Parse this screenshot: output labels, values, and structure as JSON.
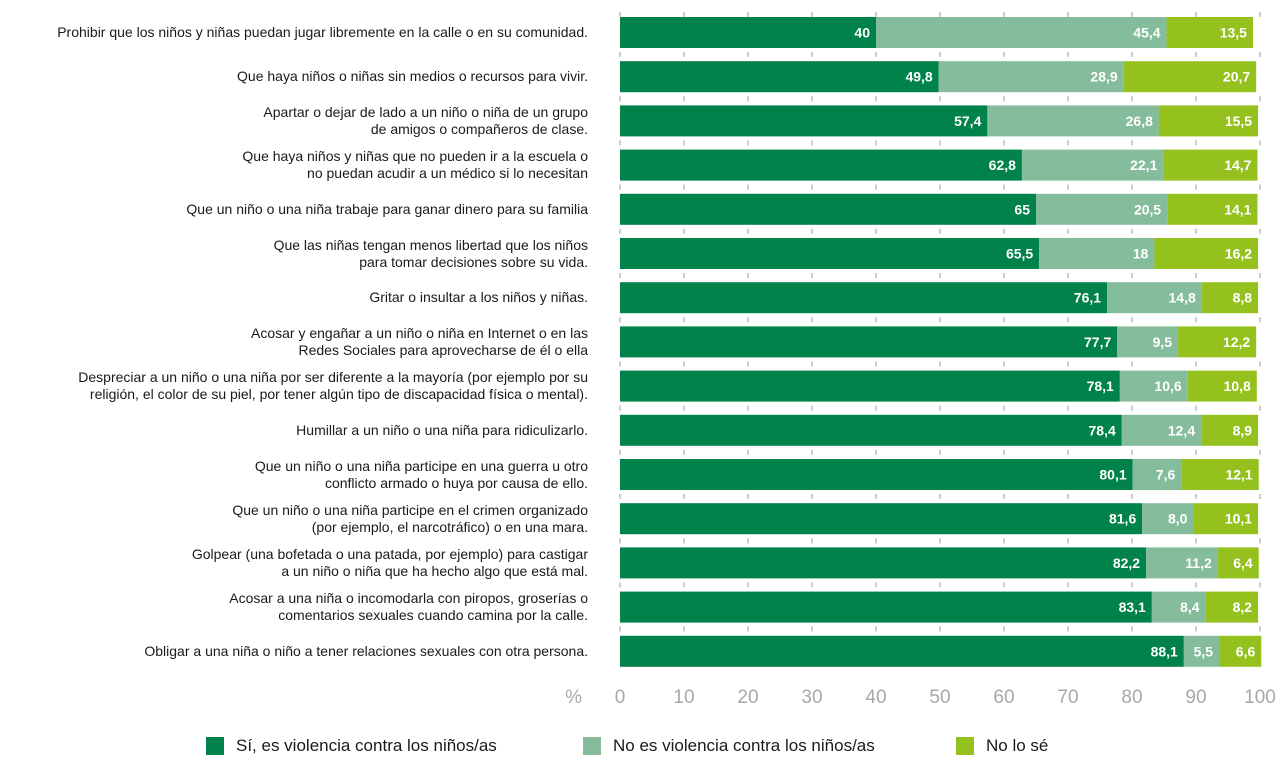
{
  "chart_data": {
    "type": "bar",
    "orientation": "horizontal",
    "stacked": true,
    "xlabel": "%",
    "xlim": [
      0,
      100
    ],
    "xticks": [
      0,
      10,
      20,
      30,
      40,
      50,
      60,
      70,
      80,
      90,
      100
    ],
    "grid": false,
    "legend_position": "bottom",
    "categories": [
      "Prohibir que los niños y niñas puedan jugar libremente en la calle o en su comunidad.",
      "Que haya niños o niñas sin medios o recursos para vivir.",
      "Apartar o dejar de lado a un niño o niña de un grupo\nde amigos o compañeros de clase.",
      "Que haya niños y niñas que no pueden ir a la escuela o\nno puedan acudir a un médico si lo necesitan",
      "Que un niño o una niña trabaje para ganar dinero para su familia",
      "Que las niñas tengan menos libertad que los niños\npara tomar decisiones sobre su vida.",
      "Gritar o insultar a los niños y niñas.",
      "Acosar y engañar a un niño o niña en Internet o en las\nRedes Sociales para aprovecharse de él o ella",
      "Despreciar a un niño o una niña por ser diferente a la mayoría (por ejemplo por su\nreligión, el color de su piel, por tener algún tipo de discapacidad física o mental).",
      "Humillar a un niño o una niña para ridiculizarlo.",
      "Que un niño o una niña participe en una guerra u otro\nconflicto armado o huya por causa de ello.",
      "Que un niño o una niña participe en el crimen organizado\n(por ejemplo, el narcotráfico) o en una mara.",
      "Golpear (una bofetada o una patada, por ejemplo) para castigar\na un niño o niña que ha hecho algo que está mal.",
      "Acosar a una niña o incomodarla con piropos, groserías o\ncomentarios sexuales cuando camina por la calle.",
      "Obligar a una niña o niño a tener relaciones sexuales con otra persona."
    ],
    "series": [
      {
        "name": "Sí, es violencia contra los niños/as",
        "color": "#00824a",
        "values": [
          40,
          49.8,
          57.4,
          62.8,
          65,
          65.5,
          76.1,
          77.7,
          78.1,
          78.4,
          80.1,
          81.6,
          82.2,
          83.1,
          88.1
        ],
        "labels": [
          "40",
          "49,8",
          "57,4",
          "62,8",
          "65",
          "65,5",
          "76,1",
          "77,7",
          "78,1",
          "78,4",
          "80,1",
          "81,6",
          "82,2",
          "83,1",
          "88,1"
        ]
      },
      {
        "name": "No es violencia contra los niños/as",
        "color": "#84bc9c",
        "values": [
          45.4,
          28.9,
          26.8,
          22.1,
          20.5,
          18,
          14.8,
          9.5,
          10.6,
          12.4,
          7.6,
          8.0,
          11.2,
          8.4,
          5.5
        ],
        "labels": [
          "45,4",
          "28,9",
          "26,8",
          "22,1",
          "20,5",
          "18",
          "14,8",
          "9,5",
          "10,6",
          "12,4",
          "7,6",
          "8,0",
          "11,2",
          "8,4",
          "5,5"
        ]
      },
      {
        "name": "No lo sé",
        "color": "#95c11f",
        "values": [
          13.5,
          20.7,
          15.5,
          14.7,
          14.1,
          16.2,
          8.8,
          12.2,
          10.8,
          8.9,
          12.1,
          10.1,
          6.4,
          8.2,
          6.6
        ],
        "labels": [
          "13,5",
          "20,7",
          "15,5",
          "14,7",
          "14,1",
          "16,2",
          "8,8",
          "12,2",
          "10,8",
          "8,9",
          "12,1",
          "10,1",
          "6,4",
          "8,2",
          "6,6"
        ]
      }
    ]
  }
}
